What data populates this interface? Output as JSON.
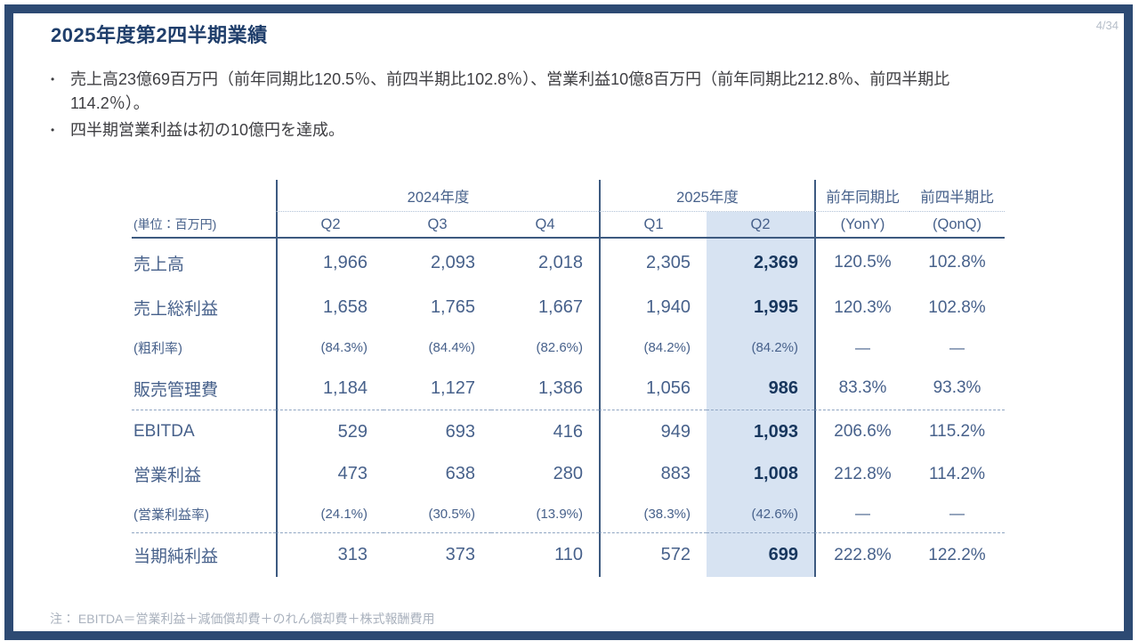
{
  "slide": {
    "page_number": "4/34",
    "title": "2025年度第2四半期業績",
    "bullets": [
      "売上高23億69百万円（前年同期比120.5％、前四半期比102.8％）、営業利益10億8百万円（前年同期比212.8％、前四半期比114.2％）。",
      "四半期営業利益は初の10億円を達成。"
    ],
    "note": "注： EBITDA＝営業利益＋減価償却費＋のれん償却費＋株式報酬費用"
  },
  "table": {
    "unit_label": "(単位：百万円)",
    "year_groups": [
      {
        "label": "2024年度",
        "quarters": [
          "Q2",
          "Q3",
          "Q4"
        ]
      },
      {
        "label": "2025年度",
        "quarters": [
          "Q1",
          "Q2"
        ]
      }
    ],
    "quarter_headers": [
      "Q2",
      "Q3",
      "Q4",
      "Q1",
      "Q2"
    ],
    "comparison_columns": [
      {
        "label": "前年同期比",
        "sublabel": "(YonY)"
      },
      {
        "label": "前四半期比",
        "sublabel": "(QonQ)"
      }
    ],
    "highlighted_column": "2025年度 Q2",
    "rows": [
      {
        "label": "売上高",
        "type": "main",
        "values": [
          "1,966",
          "2,093",
          "2,018",
          "2,305",
          "2,369",
          "120.5%",
          "102.8%"
        ]
      },
      {
        "label": "売上総利益",
        "type": "main",
        "values": [
          "1,658",
          "1,765",
          "1,667",
          "1,940",
          "1,995",
          "120.3%",
          "102.8%"
        ]
      },
      {
        "label": "(粗利率)",
        "type": "sub",
        "values": [
          "(84.3%)",
          "(84.4%)",
          "(82.6%)",
          "(84.2%)",
          "(84.2%)",
          "—",
          "—"
        ]
      },
      {
        "label": "販売管理費",
        "type": "main",
        "values": [
          "1,184",
          "1,127",
          "1,386",
          "1,056",
          "986",
          "83.3%",
          "93.3%"
        ]
      },
      {
        "label": "EBITDA",
        "type": "main",
        "separator_above": true,
        "values": [
          "529",
          "693",
          "416",
          "949",
          "1,093",
          "206.6%",
          "115.2%"
        ]
      },
      {
        "label": "営業利益",
        "type": "main",
        "values": [
          "473",
          "638",
          "280",
          "883",
          "1,008",
          "212.8%",
          "114.2%"
        ]
      },
      {
        "label": "(営業利益率)",
        "type": "sub",
        "values": [
          "(24.1%)",
          "(30.5%)",
          "(13.9%)",
          "(38.3%)",
          "(42.6%)",
          "—",
          "—"
        ]
      },
      {
        "label": "当期純利益",
        "type": "main",
        "separator_above": true,
        "values": [
          "313",
          "373",
          "110",
          "572",
          "699",
          "222.8%",
          "122.2%"
        ]
      }
    ]
  },
  "colors": {
    "frame_border": "#2d4a73",
    "title_text": "#1f3e6b",
    "table_text": "#47618b",
    "table_bold_text": "#17365d",
    "highlight_column_bg": "#d7e3f2",
    "rule_line": "#3d5a80",
    "note_text": "#a9b1bd"
  },
  "chart_data": {
    "type": "table",
    "title": "2025年度第2四半期業績",
    "unit": "百万円",
    "columns": [
      "2024年度 Q2",
      "2024年度 Q3",
      "2024年度 Q4",
      "2025年度 Q1",
      "2025年度 Q2",
      "前年同期比 (YonY)",
      "前四半期比 (QonQ)"
    ],
    "rows": [
      {
        "label": "売上高",
        "values": [
          1966,
          2093,
          2018,
          2305,
          2369
        ],
        "yony": "120.5%",
        "qonq": "102.8%"
      },
      {
        "label": "売上総利益",
        "values": [
          1658,
          1765,
          1667,
          1940,
          1995
        ],
        "yony": "120.3%",
        "qonq": "102.8%"
      },
      {
        "label": "粗利率",
        "values": [
          "84.3%",
          "84.4%",
          "82.6%",
          "84.2%",
          "84.2%"
        ],
        "yony": null,
        "qonq": null
      },
      {
        "label": "販売管理費",
        "values": [
          1184,
          1127,
          1386,
          1056,
          986
        ],
        "yony": "83.3%",
        "qonq": "93.3%"
      },
      {
        "label": "EBITDA",
        "values": [
          529,
          693,
          416,
          949,
          1093
        ],
        "yony": "206.6%",
        "qonq": "115.2%"
      },
      {
        "label": "営業利益",
        "values": [
          473,
          638,
          280,
          883,
          1008
        ],
        "yony": "212.8%",
        "qonq": "114.2%"
      },
      {
        "label": "営業利益率",
        "values": [
          "24.1%",
          "30.5%",
          "13.9%",
          "38.3%",
          "42.6%"
        ],
        "yony": null,
        "qonq": null
      },
      {
        "label": "当期純利益",
        "values": [
          313,
          373,
          110,
          572,
          699
        ],
        "yony": "222.8%",
        "qonq": "122.2%"
      }
    ]
  }
}
